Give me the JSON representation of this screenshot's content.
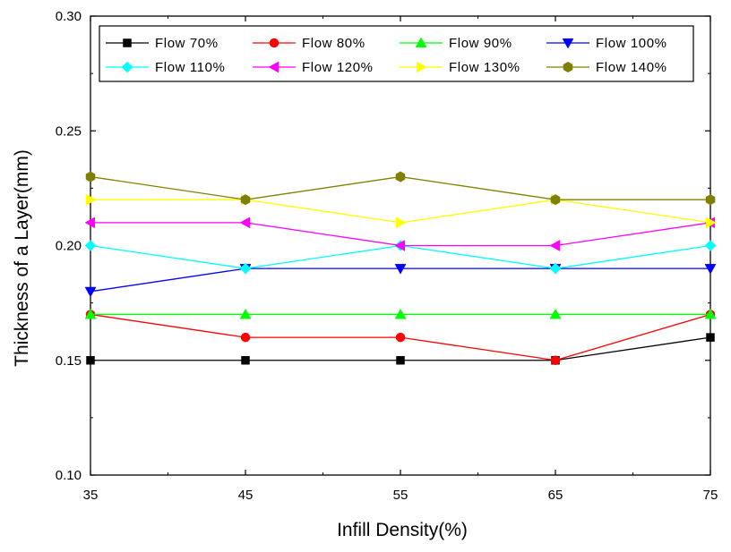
{
  "chart_data": {
    "type": "line",
    "x": [
      35,
      45,
      55,
      65,
      75
    ],
    "xlabel": "Infill Density(%)",
    "ylabel": "Thickness of a Layer(mm)",
    "xlim": [
      35,
      75
    ],
    "ylim": [
      0.1,
      0.3
    ],
    "x_ticks": [
      "35",
      "45",
      "55",
      "65",
      "75"
    ],
    "y_ticks": [
      "0.10",
      "0.15",
      "0.20",
      "0.25",
      "0.30"
    ],
    "grid": false,
    "legend_position": "top",
    "series": [
      {
        "name": "Flow 70%",
        "color": "#000000",
        "marker": "square",
        "values": [
          0.15,
          0.15,
          0.15,
          0.15,
          0.16
        ]
      },
      {
        "name": "Flow 80%",
        "color": "#ff0000",
        "marker": "circle",
        "values": [
          0.17,
          0.16,
          0.16,
          0.15,
          0.17
        ]
      },
      {
        "name": "Flow 90%",
        "color": "#00ff00",
        "marker": "triangle-up",
        "values": [
          0.17,
          0.17,
          0.17,
          0.17,
          0.17
        ]
      },
      {
        "name": "Flow 100%",
        "color": "#0000ff",
        "marker": "triangle-down",
        "values": [
          0.18,
          0.19,
          0.19,
          0.19,
          0.19
        ]
      },
      {
        "name": "Flow 110%",
        "color": "#00ffff",
        "marker": "diamond",
        "values": [
          0.2,
          0.19,
          0.2,
          0.19,
          0.2
        ]
      },
      {
        "name": "Flow 120%",
        "color": "#ff00ff",
        "marker": "triangle-left",
        "values": [
          0.21,
          0.21,
          0.2,
          0.2,
          0.21
        ]
      },
      {
        "name": "Flow 130%",
        "color": "#ffff00",
        "marker": "triangle-right",
        "values": [
          0.22,
          0.22,
          0.21,
          0.22,
          0.21
        ]
      },
      {
        "name": "Flow 140%",
        "color": "#808000",
        "marker": "hexagon",
        "values": [
          0.23,
          0.22,
          0.23,
          0.22,
          0.22
        ]
      }
    ]
  }
}
